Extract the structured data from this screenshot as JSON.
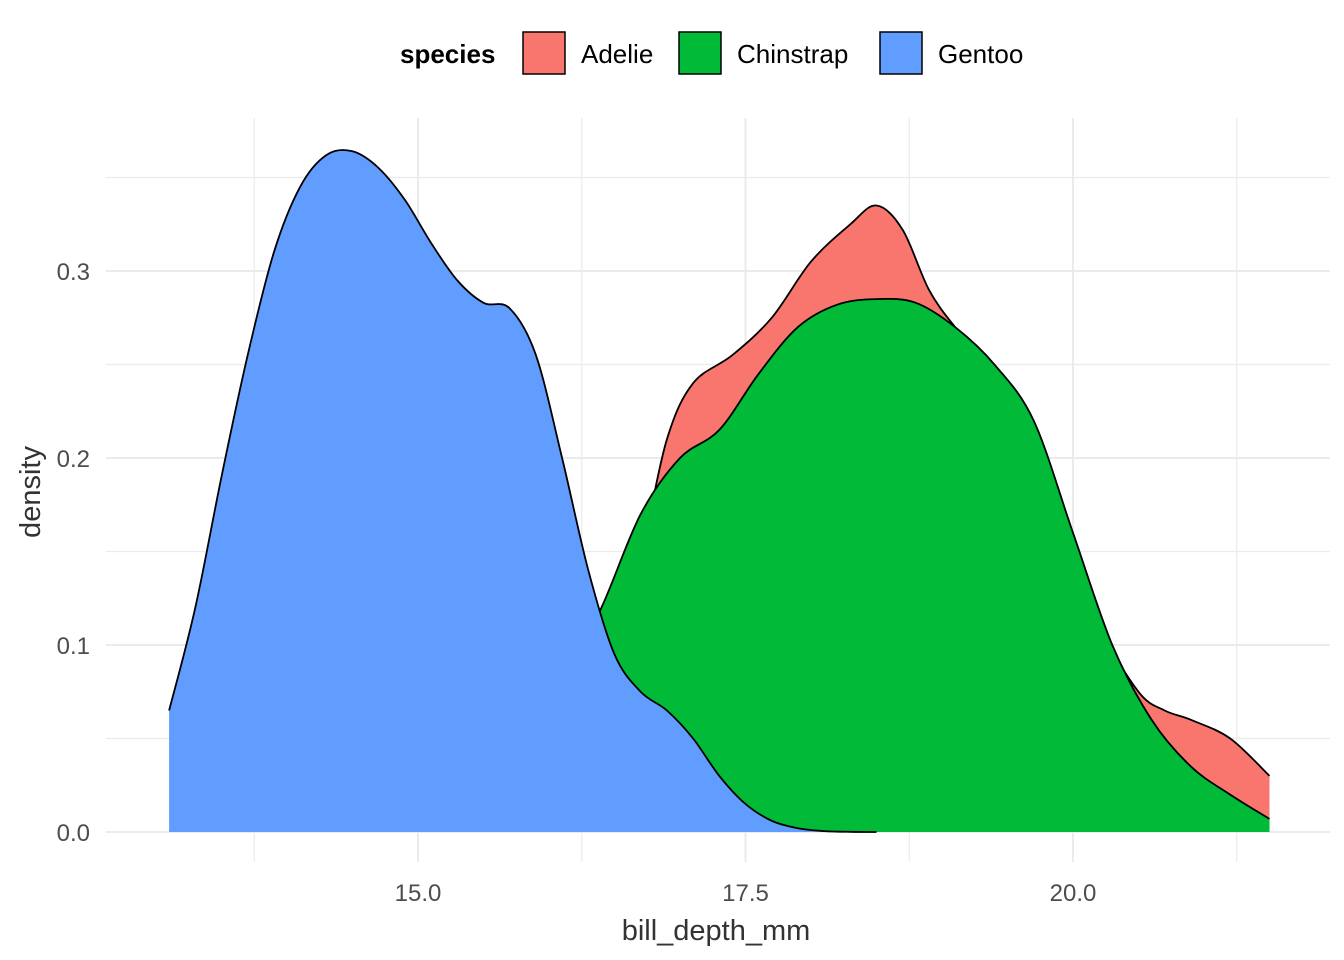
{
  "chart_data": {
    "type": "area",
    "xlabel": "bill_depth_mm",
    "ylabel": "density",
    "xlim": [
      13.1,
      21.5
    ],
    "ylim": [
      0,
      0.37
    ],
    "x_ticks": [
      15.0,
      17.5,
      20.0
    ],
    "x_tick_labels": [
      "15.0",
      "17.5",
      "20.0"
    ],
    "y_ticks": [
      0.0,
      0.1,
      0.2,
      0.3
    ],
    "y_tick_labels": [
      "0.0",
      "0.1",
      "0.2",
      "0.3"
    ],
    "grid": true,
    "legend": {
      "title": "species",
      "position": "top",
      "entries": [
        {
          "label": "Adelie",
          "color": "#F8766D"
        },
        {
          "label": "Chinstrap",
          "color": "#00BA38"
        },
        {
          "label": "Gentoo",
          "color": "#619CFF"
        }
      ]
    },
    "series": [
      {
        "name": "Adelie",
        "color": "#F8766D",
        "x": [
          15.5,
          15.8,
          16.1,
          16.4,
          16.7,
          16.9,
          17.1,
          17.4,
          17.7,
          18.0,
          18.3,
          18.5,
          18.7,
          18.9,
          19.1,
          19.3,
          19.6,
          19.9,
          20.2,
          20.5,
          20.7,
          20.9,
          21.2,
          21.5
        ],
        "y": [
          0.001,
          0.01,
          0.04,
          0.09,
          0.15,
          0.21,
          0.24,
          0.255,
          0.275,
          0.305,
          0.325,
          0.335,
          0.322,
          0.29,
          0.27,
          0.255,
          0.22,
          0.16,
          0.11,
          0.075,
          0.065,
          0.06,
          0.05,
          0.03
        ]
      },
      {
        "name": "Chinstrap",
        "color": "#00BA38",
        "x": [
          15.8,
          16.1,
          16.4,
          16.7,
          17.0,
          17.3,
          17.6,
          17.9,
          18.2,
          18.5,
          18.8,
          19.1,
          19.4,
          19.7,
          20.0,
          20.3,
          20.6,
          20.9,
          21.2,
          21.5
        ],
        "y": [
          0.02,
          0.08,
          0.12,
          0.17,
          0.2,
          0.215,
          0.245,
          0.27,
          0.282,
          0.285,
          0.283,
          0.27,
          0.25,
          0.22,
          0.16,
          0.1,
          0.06,
          0.035,
          0.02,
          0.007
        ]
      },
      {
        "name": "Gentoo",
        "color": "#619CFF",
        "x": [
          13.1,
          13.3,
          13.5,
          13.7,
          13.9,
          14.1,
          14.3,
          14.5,
          14.7,
          14.9,
          15.1,
          15.3,
          15.5,
          15.7,
          15.9,
          16.1,
          16.3,
          16.5,
          16.7,
          16.9,
          17.1,
          17.3,
          17.5,
          17.7,
          17.9,
          18.1,
          18.3,
          18.5
        ],
        "y": [
          0.065,
          0.12,
          0.19,
          0.255,
          0.31,
          0.345,
          0.362,
          0.364,
          0.355,
          0.338,
          0.315,
          0.295,
          0.283,
          0.28,
          0.255,
          0.2,
          0.14,
          0.095,
          0.075,
          0.065,
          0.05,
          0.03,
          0.015,
          0.006,
          0.002,
          0.0005,
          0.0001,
          0.0
        ]
      }
    ]
  }
}
